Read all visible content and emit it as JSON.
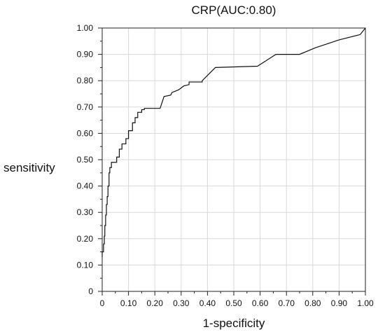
{
  "chart_data": {
    "type": "line",
    "title": "CRP(AUC:0.80)",
    "xlabel": "1-specificity",
    "ylabel": "sensitivity",
    "xlim": [
      0,
      1
    ],
    "ylim": [
      0,
      1
    ],
    "grid": true,
    "x_ticks": [
      "0",
      "0.10",
      "0.20",
      "0.30",
      "0.40",
      "0.50",
      "0.60",
      "0.70",
      "0.80",
      "0.90",
      "1.00"
    ],
    "y_ticks": [
      "0",
      "0.10",
      "0.20",
      "0.30",
      "0.40",
      "0.50",
      "0.60",
      "0.70",
      "0.80",
      "0.90",
      "1.00"
    ],
    "series": [
      {
        "x": [
          0,
          0,
          0.005,
          0.005,
          0.008,
          0.008,
          0.01,
          0.01,
          0.013,
          0.013,
          0.016,
          0.016,
          0.019,
          0.019,
          0.022,
          0.022,
          0.026,
          0.026,
          0.029,
          0.029,
          0.035,
          0.035,
          0.04,
          0.04,
          0.055,
          0.055,
          0.065,
          0.065,
          0.075,
          0.075,
          0.09,
          0.09,
          0.1,
          0.1,
          0.115,
          0.115,
          0.125,
          0.125,
          0.135,
          0.135,
          0.15,
          0.15,
          0.16,
          0.16,
          0.22,
          0.235,
          0.235,
          0.26,
          0.265,
          0.29,
          0.31,
          0.31,
          0.33,
          0.33,
          0.38,
          0.38,
          0.43,
          0.59,
          0.66,
          0.75,
          0.81,
          0.9,
          0.98,
          1.0
        ],
        "y": [
          0.13,
          0.15,
          0.15,
          0.18,
          0.18,
          0.21,
          0.21,
          0.25,
          0.25,
          0.29,
          0.29,
          0.33,
          0.33,
          0.36,
          0.36,
          0.4,
          0.4,
          0.45,
          0.45,
          0.47,
          0.47,
          0.49,
          0.49,
          0.49,
          0.49,
          0.51,
          0.51,
          0.54,
          0.54,
          0.56,
          0.56,
          0.58,
          0.58,
          0.61,
          0.61,
          0.64,
          0.64,
          0.66,
          0.66,
          0.68,
          0.68,
          0.69,
          0.69,
          0.695,
          0.695,
          0.74,
          0.74,
          0.745,
          0.755,
          0.765,
          0.78,
          0.78,
          0.785,
          0.795,
          0.795,
          0.8,
          0.85,
          0.855,
          0.9,
          0.9,
          0.925,
          0.955,
          0.975,
          1.0
        ]
      }
    ]
  }
}
